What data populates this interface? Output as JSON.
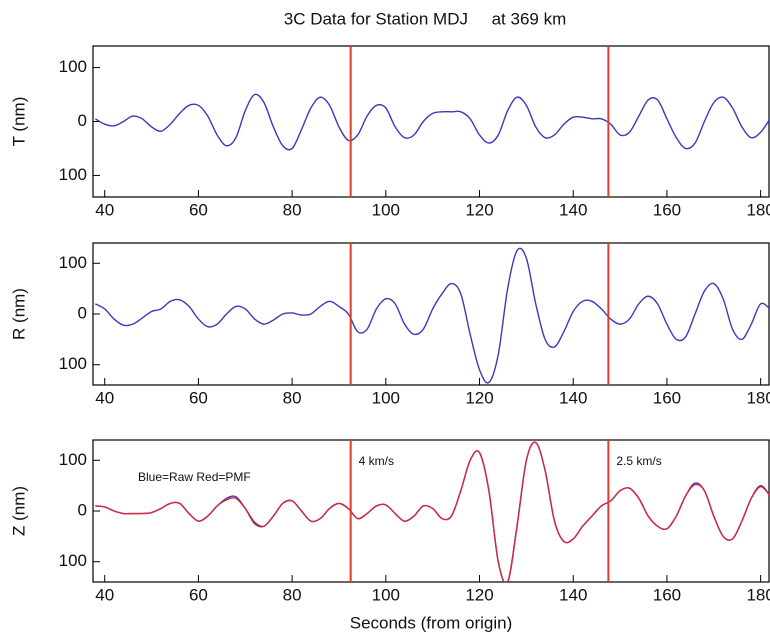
{
  "chart_data": [
    {
      "type": "line",
      "title": "3C Data for Station MDJ     at 369 km",
      "ylabel": "T (nm)",
      "xlim": [
        37.5,
        182
      ],
      "ylim": [
        -140,
        140
      ],
      "xticks": [
        40,
        60,
        80,
        100,
        120,
        140,
        160,
        180
      ],
      "yticks": [
        100,
        0,
        {
          "value": -100,
          "label": "100"
        }
      ],
      "markers": [
        92.5,
        147.5
      ],
      "marker_color": "#e03a2e",
      "x": [
        38,
        40,
        42,
        44,
        46,
        48,
        50,
        52,
        54,
        56,
        58,
        60,
        62,
        64,
        66,
        68,
        70,
        72,
        74,
        76,
        78,
        80,
        82,
        84,
        86,
        88,
        90,
        92,
        94,
        96,
        98,
        100,
        102,
        104,
        106,
        108,
        110,
        112,
        114,
        116,
        118,
        120,
        122,
        124,
        126,
        128,
        130,
        132,
        134,
        136,
        138,
        140,
        142,
        144,
        146,
        148,
        150,
        152,
        154,
        156,
        158,
        160,
        162,
        164,
        166,
        168,
        170,
        172,
        174,
        176,
        178,
        180,
        182
      ],
      "series": [
        {
          "color": "#3a3ab8",
          "values": [
            5,
            -5,
            -8,
            0,
            10,
            5,
            -10,
            -18,
            -5,
            15,
            30,
            30,
            10,
            -25,
            -45,
            -30,
            20,
            50,
            35,
            -10,
            -45,
            -50,
            -15,
            25,
            45,
            30,
            -10,
            -35,
            -25,
            10,
            30,
            25,
            -10,
            -30,
            -25,
            0,
            15,
            18,
            18,
            18,
            5,
            -25,
            -40,
            -25,
            20,
            45,
            30,
            -10,
            -30,
            -25,
            -5,
            8,
            8,
            5,
            5,
            -5,
            -25,
            -20,
            10,
            40,
            40,
            5,
            -30,
            -50,
            -40,
            0,
            35,
            45,
            25,
            -10,
            -30,
            -20,
            5
          ]
        }
      ]
    },
    {
      "type": "line",
      "ylabel": "R (nm)",
      "xlim": [
        37.5,
        182
      ],
      "ylim": [
        -140,
        140
      ],
      "xticks": [
        40,
        60,
        80,
        100,
        120,
        140,
        160,
        180
      ],
      "yticks": [
        100,
        0,
        {
          "value": -100,
          "label": "100"
        }
      ],
      "markers": [
        92.5,
        147.5
      ],
      "marker_color": "#e03a2e",
      "x": [
        38,
        40,
        42,
        44,
        46,
        48,
        50,
        52,
        54,
        56,
        58,
        60,
        62,
        64,
        66,
        68,
        70,
        72,
        74,
        76,
        78,
        80,
        82,
        84,
        86,
        88,
        90,
        92,
        94,
        96,
        98,
        100,
        102,
        104,
        106,
        108,
        110,
        112,
        114,
        116,
        118,
        120,
        122,
        124,
        126,
        128,
        130,
        132,
        134,
        136,
        138,
        140,
        142,
        144,
        146,
        148,
        150,
        152,
        154,
        156,
        158,
        160,
        162,
        164,
        166,
        168,
        170,
        172,
        174,
        176,
        178,
        180,
        182
      ],
      "series": [
        {
          "color": "#3a3ab8",
          "values": [
            20,
            10,
            -10,
            -22,
            -20,
            -8,
            5,
            10,
            25,
            28,
            15,
            -10,
            -25,
            -20,
            0,
            15,
            10,
            -10,
            -20,
            -12,
            0,
            2,
            -2,
            0,
            15,
            25,
            15,
            0,
            -35,
            -30,
            10,
            30,
            20,
            -20,
            -40,
            -30,
            10,
            40,
            60,
            40,
            -40,
            -110,
            -135,
            -80,
            50,
            125,
            110,
            20,
            -50,
            -65,
            -35,
            5,
            25,
            25,
            10,
            -10,
            -20,
            -10,
            20,
            35,
            20,
            -20,
            -50,
            -45,
            0,
            45,
            60,
            30,
            -30,
            -50,
            -20,
            20,
            10
          ]
        }
      ]
    },
    {
      "type": "line",
      "ylabel": "Z (nm)",
      "xlabel": "Seconds (from origin)",
      "note": "Blue=Raw Red=PMF",
      "xlim": [
        37.5,
        182
      ],
      "ylim": [
        -140,
        140
      ],
      "xticks": [
        40,
        60,
        80,
        100,
        120,
        140,
        160,
        180
      ],
      "yticks": [
        100,
        0,
        {
          "value": -100,
          "label": "100"
        }
      ],
      "markers": [
        92.5,
        147.5
      ],
      "marker_labels": [
        "4 km/s",
        "2.5 km/s"
      ],
      "marker_color": "#e03a2e",
      "x": [
        38,
        40,
        42,
        44,
        46,
        48,
        50,
        52,
        54,
        56,
        58,
        60,
        62,
        64,
        66,
        68,
        70,
        72,
        74,
        76,
        78,
        80,
        82,
        84,
        86,
        88,
        90,
        92,
        94,
        96,
        98,
        100,
        102,
        104,
        106,
        108,
        110,
        112,
        114,
        116,
        118,
        120,
        122,
        124,
        126,
        128,
        130,
        132,
        134,
        136,
        138,
        140,
        142,
        144,
        146,
        148,
        150,
        152,
        154,
        156,
        158,
        160,
        162,
        164,
        166,
        168,
        170,
        172,
        174,
        176,
        178,
        180,
        182
      ],
      "series": [
        {
          "color": "#3a3ab8",
          "values": [
            10,
            8,
            0,
            -5,
            -5,
            -5,
            -3,
            5,
            15,
            15,
            -5,
            -20,
            -10,
            10,
            25,
            28,
            5,
            -25,
            -30,
            -10,
            15,
            20,
            0,
            -20,
            -15,
            5,
            15,
            5,
            -15,
            -5,
            10,
            12,
            -5,
            -20,
            -10,
            10,
            5,
            -15,
            -10,
            40,
            100,
            115,
            40,
            -100,
            -140,
            -30,
            100,
            135,
            80,
            -20,
            -60,
            -55,
            -30,
            -10,
            10,
            20,
            40,
            45,
            25,
            -10,
            -30,
            -35,
            -10,
            30,
            55,
            40,
            -10,
            -50,
            -55,
            -20,
            25,
            50,
            30
          ]
        },
        {
          "color": "#d8283a",
          "values": [
            10,
            8,
            0,
            -5,
            -5,
            -5,
            -3,
            5,
            15,
            15,
            -5,
            -20,
            -10,
            10,
            22,
            25,
            5,
            -22,
            -30,
            -10,
            15,
            20,
            0,
            -20,
            -15,
            5,
            15,
            5,
            -15,
            -5,
            10,
            12,
            -5,
            -20,
            -10,
            10,
            5,
            -15,
            -10,
            40,
            100,
            115,
            40,
            -100,
            -140,
            -30,
            100,
            135,
            80,
            -20,
            -60,
            -55,
            -30,
            -10,
            10,
            20,
            40,
            45,
            25,
            -10,
            -30,
            -35,
            -10,
            30,
            52,
            40,
            -10,
            -50,
            -55,
            -20,
            25,
            48,
            30
          ]
        }
      ]
    }
  ]
}
